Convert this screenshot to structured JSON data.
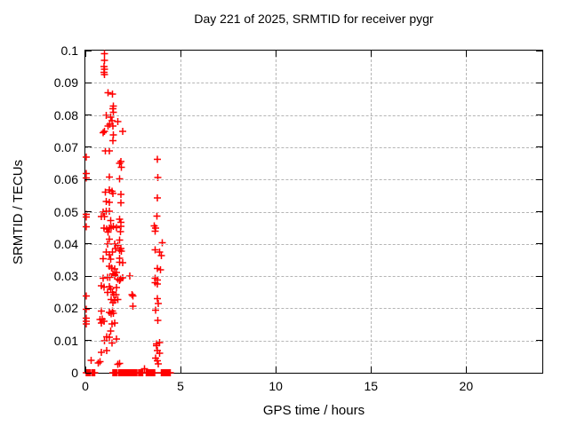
{
  "chart_data": {
    "type": "scatter",
    "title": "Day 221 of 2025, SRMTID for receiver pygr",
    "xlabel": "GPS time / hours",
    "ylabel": "SRMTID / TECUs",
    "xlim": [
      0,
      24
    ],
    "ylim": [
      0,
      0.1
    ],
    "grid": true,
    "legend": "none",
    "marker": "plus",
    "marker_color": "#ff0000",
    "grid_color": "#b5b5b5",
    "border_color": "#000000",
    "xticks": {
      "values": [
        0,
        5,
        10,
        15,
        20
      ],
      "labels": [
        "0",
        "5",
        "10",
        "15",
        "20"
      ]
    },
    "yticks": {
      "values": [
        0,
        0.01,
        0.02,
        0.03,
        0.04,
        0.05,
        0.06,
        0.07,
        0.08,
        0.09,
        0.1
      ],
      "labels": [
        "0",
        "0.01",
        "0.02",
        "0.03",
        "0.04",
        "0.05",
        "0.06",
        "0.07",
        "0.08",
        "0.09",
        "0.1"
      ]
    },
    "series": [
      {
        "name": "SRMTID",
        "points": [
          [
            1.01,
            0.099
          ],
          [
            1.01,
            0.097
          ],
          [
            0.98,
            0.095
          ],
          [
            1.0,
            0.0942
          ],
          [
            0.98,
            0.0933
          ],
          [
            1.0,
            0.0926
          ],
          [
            1.2,
            0.0869
          ],
          [
            1.43,
            0.0865
          ],
          [
            1.48,
            0.0828
          ],
          [
            1.45,
            0.0819
          ],
          [
            1.48,
            0.0808
          ],
          [
            1.09,
            0.0799
          ],
          [
            1.32,
            0.0793
          ],
          [
            1.4,
            0.0782
          ],
          [
            1.71,
            0.078
          ],
          [
            1.29,
            0.0771
          ],
          [
            1.2,
            0.0766
          ],
          [
            1.45,
            0.0766
          ],
          [
            1.01,
            0.075
          ],
          [
            0.93,
            0.0745
          ],
          [
            1.95,
            0.075
          ],
          [
            1.48,
            0.0738
          ],
          [
            1.45,
            0.072
          ],
          [
            1.04,
            0.0689
          ],
          [
            1.27,
            0.0689
          ],
          [
            0.05,
            0.067
          ],
          [
            1.87,
            0.0656
          ],
          [
            1.79,
            0.065
          ],
          [
            3.78,
            0.0663
          ],
          [
            1.9,
            0.0638
          ],
          [
            0.05,
            0.0618
          ],
          [
            0.05,
            0.0605
          ],
          [
            1.27,
            0.0607
          ],
          [
            1.79,
            0.0602
          ],
          [
            3.81,
            0.0606
          ],
          [
            1.25,
            0.0568
          ],
          [
            1.4,
            0.0563
          ],
          [
            1.06,
            0.056
          ],
          [
            1.45,
            0.0557
          ],
          [
            1.87,
            0.0554
          ],
          [
            3.78,
            0.0543
          ],
          [
            1.09,
            0.0531
          ],
          [
            1.25,
            0.0529
          ],
          [
            1.87,
            0.0527
          ],
          [
            0.93,
            0.0499
          ],
          [
            1.09,
            0.0501
          ],
          [
            1.25,
            0.0501
          ],
          [
            0.05,
            0.0492
          ],
          [
            0.05,
            0.0483
          ],
          [
            3.77,
            0.0486
          ],
          [
            0.85,
            0.0485
          ],
          [
            1.01,
            0.0485
          ],
          [
            1.32,
            0.0472
          ],
          [
            1.79,
            0.0476
          ],
          [
            1.87,
            0.0467
          ],
          [
            0.05,
            0.0453
          ],
          [
            0.98,
            0.0449
          ],
          [
            1.13,
            0.0446
          ],
          [
            1.25,
            0.0449
          ],
          [
            1.35,
            0.0451
          ],
          [
            1.48,
            0.0454
          ],
          [
            1.63,
            0.0451
          ],
          [
            1.87,
            0.0455
          ],
          [
            1.2,
            0.0437
          ],
          [
            1.84,
            0.0438
          ],
          [
            3.63,
            0.0456
          ],
          [
            3.69,
            0.0449
          ],
          [
            3.66,
            0.044
          ],
          [
            1.25,
            0.0415
          ],
          [
            1.79,
            0.0412
          ],
          [
            1.17,
            0.04
          ],
          [
            1.55,
            0.04
          ],
          [
            1.71,
            0.0396
          ],
          [
            4.05,
            0.0403
          ],
          [
            1.59,
            0.0386
          ],
          [
            1.87,
            0.0385
          ],
          [
            1.79,
            0.038
          ],
          [
            1.9,
            0.0377
          ],
          [
            1.09,
            0.0375
          ],
          [
            1.43,
            0.0375
          ],
          [
            1.25,
            0.0366
          ],
          [
            3.66,
            0.0381
          ],
          [
            3.89,
            0.0375
          ],
          [
            4.0,
            0.0363
          ],
          [
            0.93,
            0.0354
          ],
          [
            1.32,
            0.0352
          ],
          [
            1.79,
            0.0355
          ],
          [
            1.95,
            0.0341
          ],
          [
            1.79,
            0.0343
          ],
          [
            1.25,
            0.033
          ],
          [
            1.37,
            0.0325
          ],
          [
            3.78,
            0.0324
          ],
          [
            3.94,
            0.0319
          ],
          [
            1.53,
            0.0322
          ],
          [
            1.63,
            0.0311
          ],
          [
            1.45,
            0.0307
          ],
          [
            1.55,
            0.0305
          ],
          [
            1.53,
            0.03
          ],
          [
            2.33,
            0.03
          ],
          [
            0.93,
            0.0293
          ],
          [
            1.17,
            0.0296
          ],
          [
            1.29,
            0.0296
          ],
          [
            1.95,
            0.0295
          ],
          [
            1.71,
            0.0291
          ],
          [
            1.84,
            0.0291
          ],
          [
            1.79,
            0.0286
          ],
          [
            3.66,
            0.0293
          ],
          [
            3.78,
            0.0288
          ],
          [
            3.66,
            0.0279
          ],
          [
            3.78,
            0.0275
          ],
          [
            0.85,
            0.027
          ],
          [
            0.98,
            0.0266
          ],
          [
            1.25,
            0.0267
          ],
          [
            1.32,
            0.0261
          ],
          [
            1.63,
            0.0264
          ],
          [
            1.17,
            0.0249
          ],
          [
            1.43,
            0.0249
          ],
          [
            1.5,
            0.0243
          ],
          [
            1.6,
            0.0243
          ],
          [
            2.44,
            0.0243
          ],
          [
            2.5,
            0.0238
          ],
          [
            0.05,
            0.0238
          ],
          [
            1.35,
            0.0227
          ],
          [
            1.71,
            0.0227
          ],
          [
            1.53,
            0.0224
          ],
          [
            1.45,
            0.0218
          ],
          [
            3.78,
            0.023
          ],
          [
            3.84,
            0.0215
          ],
          [
            2.49,
            0.0206
          ],
          [
            0.05,
            0.0197
          ],
          [
            0.85,
            0.0192
          ],
          [
            1.43,
            0.0192
          ],
          [
            3.69,
            0.0194
          ],
          [
            1.25,
            0.0188
          ],
          [
            1.35,
            0.0183
          ],
          [
            1.48,
            0.0185
          ],
          [
            0.05,
            0.0169
          ],
          [
            0.05,
            0.016
          ],
          [
            0.05,
            0.0151
          ],
          [
            0.78,
            0.0165
          ],
          [
            0.89,
            0.0166
          ],
          [
            0.98,
            0.016
          ],
          [
            0.85,
            0.0154
          ],
          [
            1.53,
            0.0154
          ],
          [
            1.4,
            0.0151
          ],
          [
            3.81,
            0.0163
          ],
          [
            1.32,
            0.013
          ],
          [
            1.13,
            0.0112
          ],
          [
            1.25,
            0.011
          ],
          [
            1.63,
            0.0104
          ],
          [
            1.01,
            0.0099
          ],
          [
            1.4,
            0.0092
          ],
          [
            3.73,
            0.009
          ],
          [
            3.89,
            0.0093
          ],
          [
            3.74,
            0.0084
          ],
          [
            3.78,
            0.0069
          ],
          [
            1.13,
            0.0069
          ],
          [
            0.85,
            0.0064
          ],
          [
            3.89,
            0.006
          ],
          [
            3.7,
            0.0046
          ],
          [
            0.31,
            0.0038
          ],
          [
            0.78,
            0.0035
          ],
          [
            3.78,
            0.0037
          ],
          [
            1.79,
            0.0029
          ],
          [
            0.67,
            0.003
          ],
          [
            3.84,
            0.0027
          ],
          [
            1.71,
            0.0026
          ],
          [
            3.11,
            0.0012
          ],
          [
            0.05,
            0
          ],
          [
            0.1,
            0
          ],
          [
            0.15,
            0
          ],
          [
            0.2,
            0
          ],
          [
            0.25,
            0
          ],
          [
            0.35,
            0
          ],
          [
            0.4,
            0
          ],
          [
            0.45,
            0
          ],
          [
            0.5,
            0
          ],
          [
            1.45,
            0
          ],
          [
            1.5,
            0
          ],
          [
            1.55,
            0
          ],
          [
            1.6,
            0
          ],
          [
            1.65,
            0
          ],
          [
            1.75,
            0
          ],
          [
            1.8,
            0
          ],
          [
            1.85,
            0
          ],
          [
            1.9,
            0
          ],
          [
            1.95,
            0
          ],
          [
            2.0,
            0
          ],
          [
            2.05,
            0
          ],
          [
            2.1,
            0
          ],
          [
            2.15,
            0
          ],
          [
            2.2,
            0
          ],
          [
            2.25,
            0
          ],
          [
            2.3,
            0
          ],
          [
            2.35,
            0
          ],
          [
            2.4,
            0
          ],
          [
            2.45,
            0
          ],
          [
            2.5,
            0
          ],
          [
            2.55,
            0
          ],
          [
            2.6,
            0
          ],
          [
            2.65,
            0
          ],
          [
            2.7,
            0
          ],
          [
            2.8,
            0
          ],
          [
            2.85,
            0
          ],
          [
            2.9,
            0
          ],
          [
            2.95,
            0
          ],
          [
            3.0,
            0
          ],
          [
            3.2,
            0
          ],
          [
            3.25,
            0
          ],
          [
            3.3,
            0
          ],
          [
            3.35,
            0
          ],
          [
            3.4,
            0
          ],
          [
            3.45,
            0
          ],
          [
            3.5,
            0
          ],
          [
            3.55,
            0
          ],
          [
            3.6,
            0
          ],
          [
            3.65,
            0
          ],
          [
            4.0,
            0
          ],
          [
            4.05,
            0
          ],
          [
            4.1,
            0
          ],
          [
            4.15,
            0
          ],
          [
            4.2,
            0
          ],
          [
            4.25,
            0
          ],
          [
            4.3,
            0
          ],
          [
            4.35,
            0
          ],
          [
            4.4,
            0
          ],
          [
            4.45,
            0
          ]
        ]
      }
    ]
  }
}
